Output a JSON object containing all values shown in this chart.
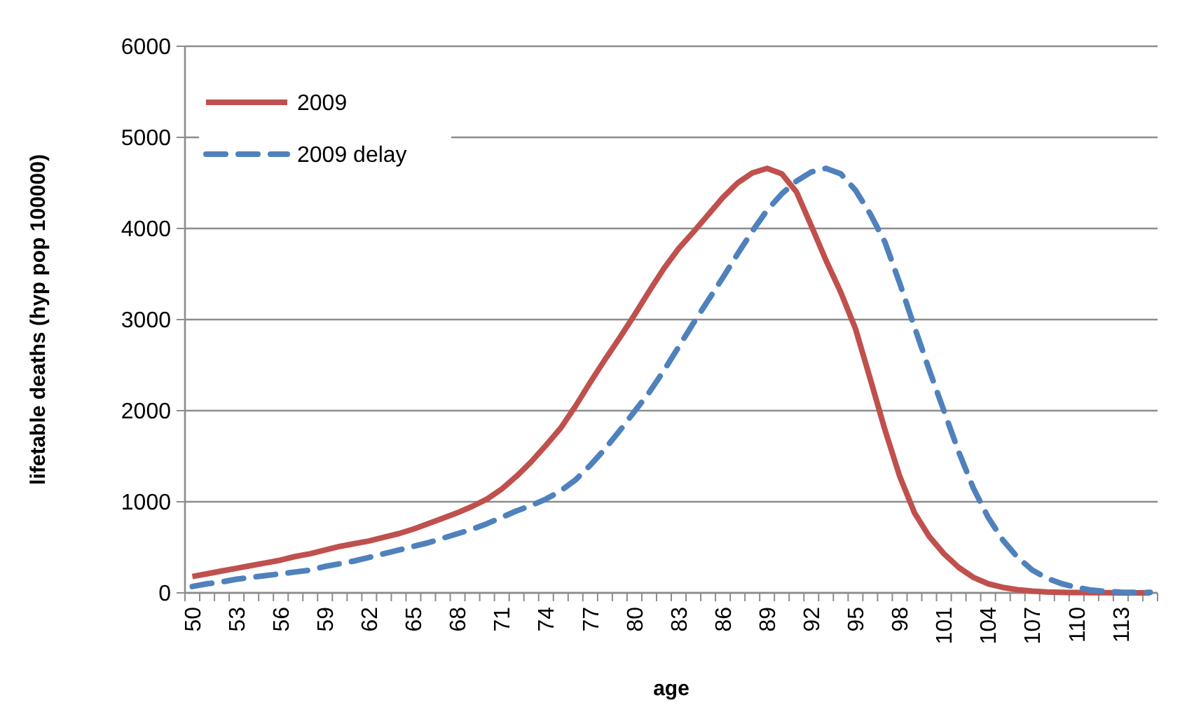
{
  "chart_data": {
    "type": "line",
    "xlabel": "age",
    "ylabel": "lifetable deaths (hyp pop 100000)",
    "categories": [
      "50",
      null,
      null,
      "53",
      null,
      null,
      "56",
      null,
      null,
      "59",
      null,
      null,
      "62",
      null,
      null,
      "65",
      null,
      null,
      "68",
      null,
      null,
      "71",
      null,
      null,
      "74",
      null,
      null,
      "77",
      null,
      null,
      "80",
      null,
      null,
      "83",
      null,
      null,
      "86",
      null,
      null,
      "89",
      null,
      null,
      "92",
      null,
      null,
      "95",
      null,
      null,
      "98",
      null,
      null,
      "101",
      null,
      null,
      "104",
      null,
      null,
      "107",
      null,
      null,
      "110",
      null,
      null,
      "113",
      null,
      null
    ],
    "ylim": [
      0,
      6000
    ],
    "yticks": [
      0,
      1000,
      2000,
      3000,
      4000,
      5000,
      6000
    ],
    "grid": "y",
    "legend": "top left",
    "series": [
      {
        "name": "2009",
        "color": "#c0504d",
        "line_style": "solid",
        "values": [
          180,
          210,
          240,
          270,
          300,
          330,
          360,
          400,
          430,
          470,
          510,
          540,
          570,
          610,
          650,
          700,
          760,
          820,
          880,
          950,
          1030,
          1140,
          1280,
          1440,
          1620,
          1810,
          2050,
          2310,
          2560,
          2800,
          3050,
          3310,
          3560,
          3780,
          3960,
          4150,
          4340,
          4500,
          4610,
          4660,
          4600,
          4400,
          4030,
          3650,
          3300,
          2900,
          2350,
          1790,
          1280,
          880,
          620,
          430,
          280,
          170,
          100,
          60,
          35,
          20,
          10,
          5,
          3,
          2,
          1,
          0,
          0,
          0
        ]
      },
      {
        "name": "2009 delay",
        "color": "#4f81bd",
        "line_style": "dashed",
        "values": [
          70,
          100,
          120,
          150,
          170,
          190,
          210,
          230,
          250,
          290,
          320,
          350,
          390,
          430,
          470,
          510,
          550,
          600,
          650,
          700,
          760,
          830,
          900,
          960,
          1030,
          1120,
          1240,
          1400,
          1580,
          1780,
          1990,
          2200,
          2440,
          2700,
          2960,
          3210,
          3460,
          3720,
          3970,
          4200,
          4380,
          4520,
          4620,
          4660,
          4600,
          4420,
          4160,
          3850,
          3400,
          2920,
          2450,
          2000,
          1550,
          1150,
          830,
          580,
          390,
          250,
          160,
          100,
          60,
          30,
          15,
          8,
          5,
          5
        ]
      }
    ]
  }
}
